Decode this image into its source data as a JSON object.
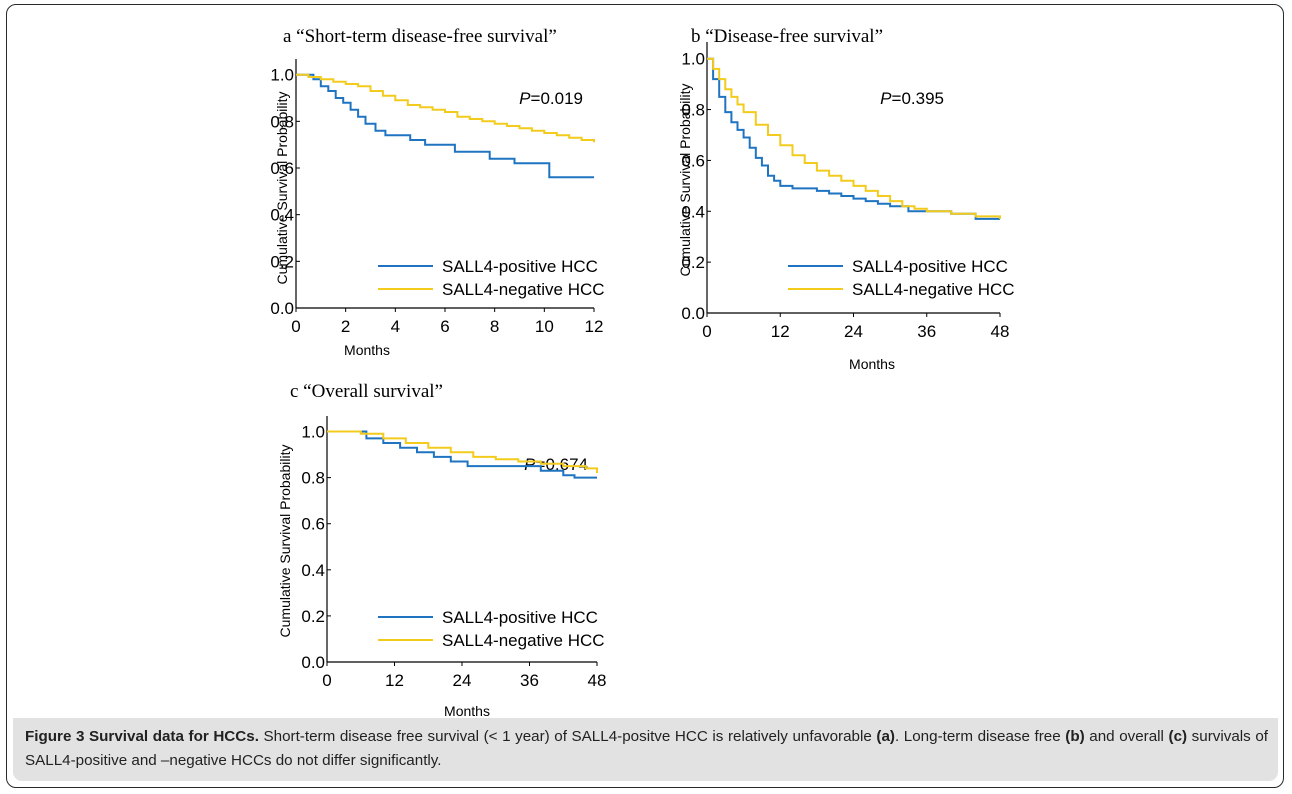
{
  "colors": {
    "positive": "#1f74c2",
    "negative": "#f2cb1d",
    "axis": "#000000",
    "caption_bg": "#e2e2e2"
  },
  "chart_data": [
    {
      "id": "a",
      "type": "line",
      "panel_letter": "a",
      "title": "“Short-term disease-free survival”",
      "xlabel": "Months",
      "ylabel": "Cumulative Survival Probability",
      "xlim": [
        0,
        12
      ],
      "ylim": [
        0,
        1.05
      ],
      "xticks": [
        "0",
        "2",
        "4",
        "6",
        "8",
        "10",
        "12"
      ],
      "yticks": [
        "0.0",
        "0.2",
        "0.4",
        "0.6",
        "0.8",
        "1.0"
      ],
      "p_label": "P",
      "p_value": "=0.019",
      "legend_position": "bottom-right",
      "series": [
        {
          "name": "SALL4-positive HCC",
          "color": "#1f74c2",
          "x": [
            0,
            0.7,
            1.0,
            1.3,
            1.6,
            1.9,
            2.2,
            2.5,
            2.8,
            3.2,
            3.6,
            4.0,
            4.6,
            5.2,
            5.8,
            6.4,
            7.2,
            7.8,
            8.2,
            8.8,
            9.6,
            10.2,
            12
          ],
          "y": [
            1.0,
            0.98,
            0.95,
            0.93,
            0.9,
            0.88,
            0.85,
            0.82,
            0.79,
            0.76,
            0.74,
            0.74,
            0.72,
            0.7,
            0.7,
            0.67,
            0.67,
            0.64,
            0.64,
            0.62,
            0.62,
            0.56,
            0.56
          ]
        },
        {
          "name": "SALL4-negative HCC",
          "color": "#f2cb1d",
          "x": [
            0,
            0.5,
            1.0,
            1.5,
            2.0,
            2.5,
            3.0,
            3.5,
            4.0,
            4.5,
            5.0,
            5.5,
            6.0,
            6.5,
            7.0,
            7.5,
            8.0,
            8.5,
            9.0,
            9.5,
            10.0,
            10.5,
            11.0,
            11.5,
            12.0
          ],
          "y": [
            1.0,
            0.99,
            0.98,
            0.97,
            0.96,
            0.95,
            0.93,
            0.91,
            0.89,
            0.87,
            0.86,
            0.85,
            0.84,
            0.82,
            0.81,
            0.8,
            0.79,
            0.78,
            0.77,
            0.76,
            0.75,
            0.74,
            0.73,
            0.72,
            0.71
          ]
        }
      ]
    },
    {
      "id": "b",
      "type": "line",
      "panel_letter": "b",
      "title": "“Disease-free survival”",
      "xlabel": "Months",
      "ylabel": "Cumulative Survival Probability",
      "xlim": [
        0,
        48
      ],
      "ylim": [
        0,
        1.05
      ],
      "xticks": [
        "0",
        "12",
        "24",
        "36",
        "48"
      ],
      "yticks": [
        "0.0",
        "0.2",
        "0.4",
        "0.6",
        "0.8",
        "1.0"
      ],
      "p_label": "P",
      "p_value": "=0.395",
      "legend_position": "bottom-right",
      "series": [
        {
          "name": "SALL4-positive HCC",
          "color": "#1f74c2",
          "x": [
            0,
            1,
            2,
            3,
            4,
            5,
            6,
            7,
            8,
            9,
            10,
            11,
            12,
            14,
            16,
            18,
            20,
            22,
            24,
            26,
            28,
            30,
            33,
            36,
            40,
            44,
            48
          ],
          "y": [
            1.0,
            0.92,
            0.85,
            0.79,
            0.75,
            0.72,
            0.69,
            0.65,
            0.61,
            0.58,
            0.54,
            0.52,
            0.5,
            0.49,
            0.49,
            0.48,
            0.47,
            0.46,
            0.45,
            0.44,
            0.43,
            0.42,
            0.4,
            0.4,
            0.39,
            0.37,
            0.37
          ]
        },
        {
          "name": "SALL4-negative HCC",
          "color": "#f2cb1d",
          "x": [
            0,
            1,
            2,
            3,
            4,
            5,
            6,
            8,
            10,
            12,
            14,
            16,
            18,
            20,
            22,
            24,
            26,
            28,
            30,
            32,
            34,
            36,
            40,
            44,
            48
          ],
          "y": [
            1.0,
            0.96,
            0.92,
            0.88,
            0.85,
            0.82,
            0.79,
            0.74,
            0.7,
            0.66,
            0.62,
            0.59,
            0.56,
            0.54,
            0.52,
            0.5,
            0.48,
            0.46,
            0.44,
            0.42,
            0.41,
            0.4,
            0.39,
            0.38,
            0.37
          ]
        }
      ]
    },
    {
      "id": "c",
      "type": "line",
      "panel_letter": "c",
      "title": "“Overall survival”",
      "xlabel": "Months",
      "ylabel": "Cumulative Survival Probability",
      "xlim": [
        0,
        48
      ],
      "ylim": [
        0,
        1.05
      ],
      "xticks": [
        "0",
        "12",
        "24",
        "36",
        "48"
      ],
      "yticks": [
        "0.0",
        "0.2",
        "0.4",
        "0.6",
        "0.8",
        "1.0"
      ],
      "p_label": "P",
      "p_value": "=0.674",
      "legend_position": "bottom-right",
      "series": [
        {
          "name": "SALL4-positive HCC",
          "color": "#1f74c2",
          "x": [
            0,
            4,
            7,
            10,
            13,
            16,
            19,
            22,
            25,
            28,
            31,
            35,
            38,
            42,
            44,
            48
          ],
          "y": [
            1.0,
            1.0,
            0.97,
            0.95,
            0.93,
            0.91,
            0.89,
            0.87,
            0.85,
            0.85,
            0.85,
            0.85,
            0.83,
            0.81,
            0.8,
            0.8
          ]
        },
        {
          "name": "SALL4-negative HCC",
          "color": "#f2cb1d",
          "x": [
            0,
            4,
            6,
            10,
            14,
            18,
            22,
            26,
            30,
            34,
            38,
            42,
            46,
            48
          ],
          "y": [
            1.0,
            1.0,
            0.99,
            0.97,
            0.95,
            0.93,
            0.91,
            0.89,
            0.88,
            0.87,
            0.86,
            0.85,
            0.84,
            0.82
          ]
        }
      ]
    }
  ],
  "caption": {
    "label": "Figure 3 Survival data for HCCs.",
    "t1": " Short-term disease free survival (< 1 year) of SALL4-positve HCC is relatively unfavorable ",
    "ref_a": "(a)",
    "t2": ". Long-term disease free ",
    "ref_b": "(b)",
    "t3": " and overall ",
    "ref_c": "(c)",
    "t4": " survivals of SALL4-positive and –negative HCCs do not differ significantly."
  }
}
